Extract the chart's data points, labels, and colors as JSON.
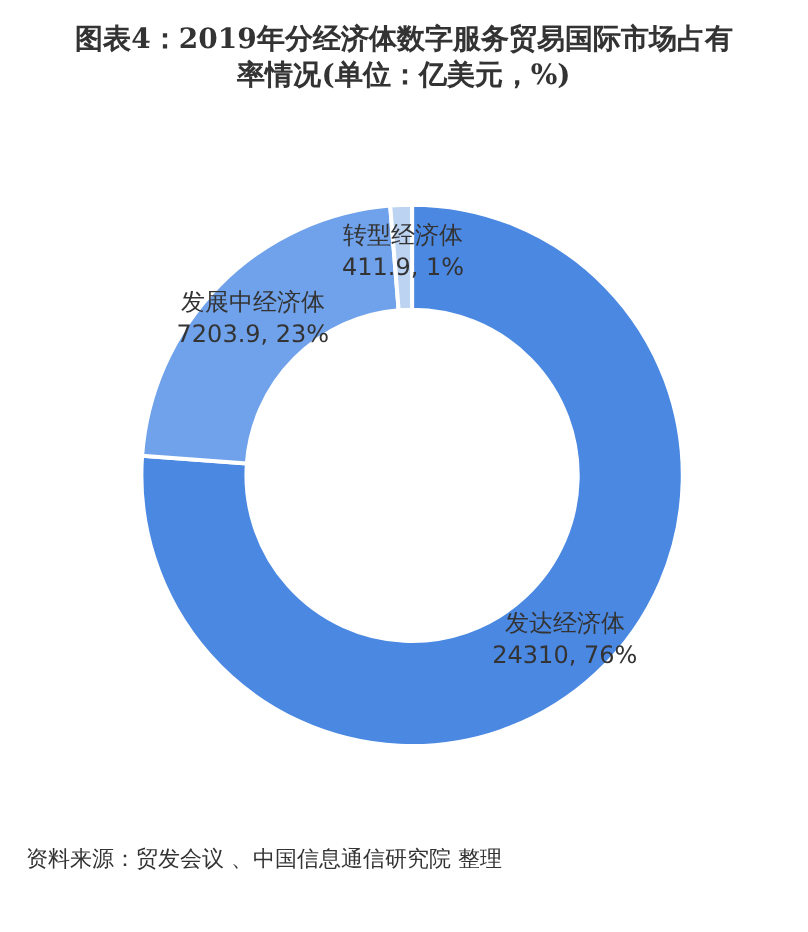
{
  "chart_data": {
    "type": "donut",
    "title": "图表4：2019年分经济体数字服务贸易国际市场占有率情况(单位：亿美元，%)",
    "categories": [
      "发达经济体",
      "发展中经济体",
      "转型经济体"
    ],
    "values": [
      24310,
      7203.9,
      411.9
    ],
    "value_labels": [
      "24310, 76%",
      "7203.9, 23%",
      "411.9, 1%"
    ],
    "colors": [
      "#4a88e2",
      "#6fa2ea",
      "#bcd3f2"
    ],
    "legend": false,
    "annotations": [
      "资料来源：贸发会议 、中国信息通信研究院 整理"
    ]
  }
}
